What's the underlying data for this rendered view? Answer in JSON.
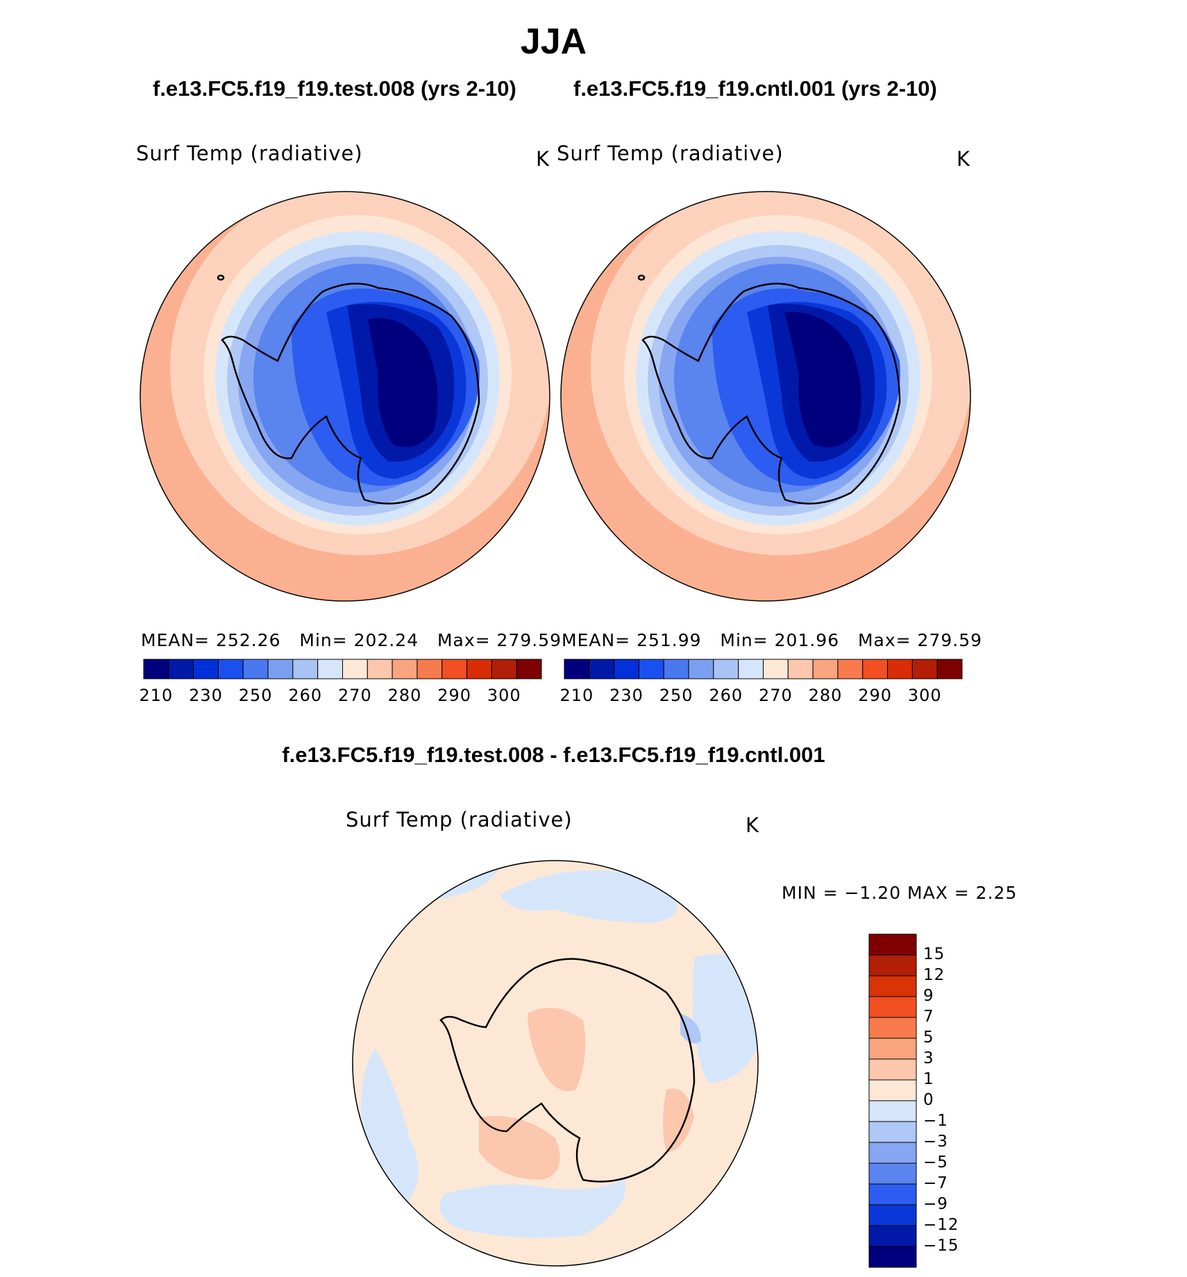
{
  "header": {
    "season": "JJA",
    "test_case": "f.e13.FC5.f19_f19.test.008 (yrs 2-10)",
    "control_case": "f.e13.FC5.f19_f19.cntl.001 (yrs 2-10)",
    "diff_title": "f.e13.FC5.f19_f19.test.008 - f.e13.FC5.f19_f19.cntl.001"
  },
  "panels": {
    "test": {
      "variable": "Surf Temp (radiative)",
      "units": "K",
      "stats": {
        "mean": "MEAN= 252.26",
        "min": "Min= 202.24",
        "max": "Max= 279.59"
      }
    },
    "control": {
      "variable": "Surf Temp (radiative)",
      "units": "K",
      "stats": {
        "mean": "MEAN= 251.99",
        "min": "Min= 201.96",
        "max": "Max= 279.59"
      }
    },
    "difference": {
      "variable": "Surf Temp (radiative)",
      "units": "K",
      "minmax": "MIN = −1.20 MAX = 2.25"
    }
  },
  "colorbars": {
    "absolute": {
      "colors": [
        "#00007f",
        "#0019a8",
        "#0030d8",
        "#1a50f0",
        "#4a78ee",
        "#7a9ef0",
        "#a8c4f4",
        "#d6e6fa",
        "#fde8d6",
        "#fcc7ad",
        "#f9a47e",
        "#f77b4d",
        "#f24f22",
        "#d92d08",
        "#b31e06",
        "#7f0000"
      ],
      "labels": [
        "210",
        "230",
        "250",
        "260",
        "270",
        "280",
        "290",
        "300"
      ]
    },
    "difference": {
      "colors": [
        "#7f0000",
        "#b31e06",
        "#d93308",
        "#f24f22",
        "#f77b4d",
        "#f9a47e",
        "#fcc7ad",
        "#fde8d6",
        "#d6e6fa",
        "#b0c8f6",
        "#86a6f2",
        "#5a84ee",
        "#2d5cf0",
        "#0a38d8",
        "#0019a8",
        "#00007f"
      ],
      "labels": [
        "15",
        "12",
        "9",
        "7",
        "5",
        "3",
        "1",
        "0",
        "−1",
        "−3",
        "−5",
        "−7",
        "−9",
        "−12",
        "−15"
      ]
    }
  },
  "map_colors": {
    "ocean_far": "#fbb191",
    "ocean_mid": "#fdd2bc",
    "ocean_near": "#fde6d6",
    "ice_edge": "#d6e6fa",
    "level_1": "#b0c8f6",
    "level_2": "#86a6f2",
    "level_3": "#5a84ee",
    "level_4": "#2d5cf0",
    "level_5": "#0a38d8",
    "level_6": "#0019a8",
    "level_7": "#00007f",
    "diff_pos": "#fde8d6",
    "diff_pos2": "#fcc7ad",
    "diff_neg": "#d6e6fa",
    "diff_neg2": "#b0c8f6"
  }
}
